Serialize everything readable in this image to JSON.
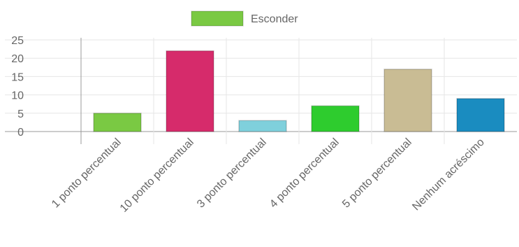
{
  "chart_data": {
    "type": "bar",
    "categories": [
      "",
      "1 ponto percentual",
      "10 ponto percentual",
      "3 ponto percentual",
      "4 ponto percentual",
      "5 ponto percentual",
      "Nenhum acréscimo"
    ],
    "values": [
      0,
      5,
      22,
      3,
      7,
      17,
      9
    ],
    "colors": [
      "#7ac943",
      "#7ac943",
      "#d62b6b",
      "#7fd0dc",
      "#2ecc2e",
      "#c9bc94",
      "#1a8cc0"
    ],
    "ylim": [
      0,
      25
    ],
    "yticks": [
      0,
      5,
      10,
      15,
      20,
      25
    ],
    "grid": true,
    "legend": {
      "position": "top",
      "entries": [
        {
          "label": "Esconder",
          "color": "#7ac943"
        }
      ]
    }
  }
}
